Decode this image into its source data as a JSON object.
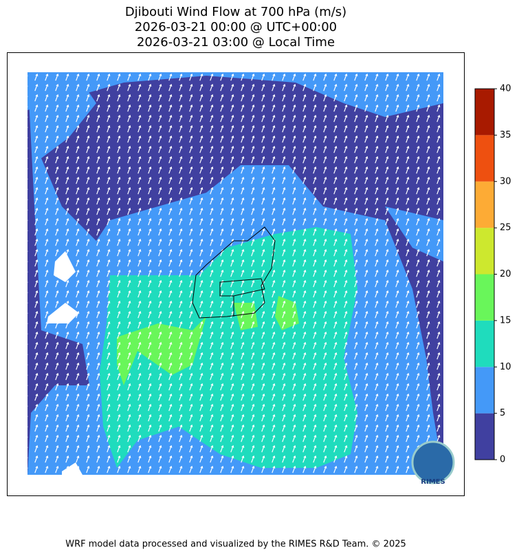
{
  "title_lines": [
    "Djibouti Wind Flow at 700 hPa (m/s)",
    "2026-03-21 00:00 @ UTC+00:00",
    "2026-03-21 03:00 @ Local Time"
  ],
  "colorbar": {
    "ticks": [
      0,
      5,
      10,
      15,
      20,
      25,
      30,
      35,
      40
    ],
    "colors": [
      "#4040a0",
      "#4499f8",
      "#1fdcbd",
      "#69f65a",
      "#cde82e",
      "#fdab35",
      "#ee5010",
      "#a81a00"
    ]
  },
  "logo": {
    "text": "RIMES"
  },
  "footer": "WRF model data processed and visualized by the RIMES R&D Team. © 2025"
}
